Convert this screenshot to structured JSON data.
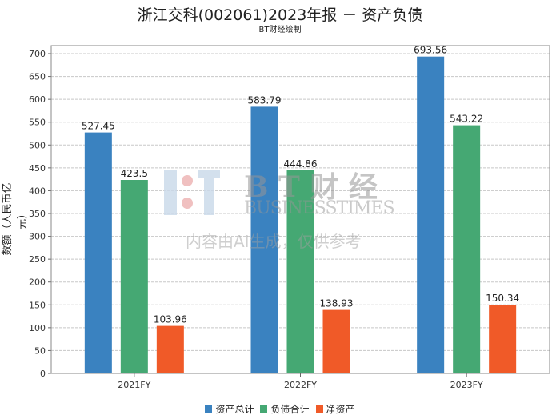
{
  "chart_data": {
    "type": "bar",
    "title": "浙江交科(002061)2023年报 － 资产负债",
    "subtitle": "BT财经绘制",
    "xlabel": "",
    "ylabel": "数额（人民币亿元）",
    "ylim": [
      0,
      700
    ],
    "yticks": [
      0,
      50,
      100,
      150,
      200,
      250,
      300,
      350,
      400,
      450,
      500,
      550,
      600,
      650,
      700
    ],
    "grid": true,
    "legend_position": "bottom",
    "categories": [
      "2021FY",
      "2022FY",
      "2023FY"
    ],
    "series": [
      {
        "name": "资产总计",
        "color": "#3a82c0",
        "values": [
          527.45,
          583.79,
          693.56
        ],
        "labels": [
          "527.45",
          "583.79",
          "693.56"
        ]
      },
      {
        "name": "负债合计",
        "color": "#45a873",
        "values": [
          423.5,
          444.86,
          543.22
        ],
        "labels": [
          "423.5",
          "444.86",
          "543.22"
        ]
      },
      {
        "name": "净资产",
        "color": "#f05a28",
        "values": [
          103.96,
          138.93,
          150.34
        ],
        "labels": [
          "103.96",
          "138.93",
          "150.34"
        ]
      }
    ]
  },
  "watermark": {
    "brand": "B T 财 经",
    "brand_en": "BUSINESSTIMES",
    "notice": "内容由AI生成，仅供参考"
  }
}
